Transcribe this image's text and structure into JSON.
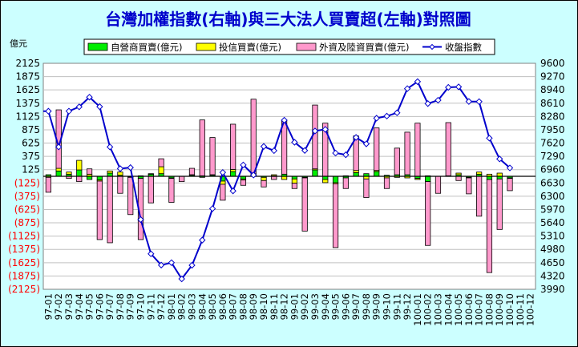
{
  "chart_data": {
    "type": "bar",
    "title": "台灣加權指數(右軸)與三大法人買賣超(左軸)對照圖",
    "y_unit_label": "億元",
    "ylim": [
      -2125,
      2125
    ],
    "y2lim": [
      3990,
      9600
    ],
    "y_tick_labels": [
      "2125",
      "1875",
      "1625",
      "1375",
      "1125",
      "875",
      "625",
      "375",
      "125",
      "(125)",
      "(375)",
      "(625)",
      "(875)",
      "(1125)",
      "(1375)",
      "(1625)",
      "(1875)",
      "(2125)"
    ],
    "y2_ticks": [
      9600,
      9270,
      8940,
      8610,
      8280,
      7950,
      7620,
      7290,
      6960,
      6630,
      6300,
      5970,
      5640,
      5310,
      4980,
      4650,
      4320,
      3990
    ],
    "categories": [
      "97-01",
      "97-02",
      "97-03",
      "97-04",
      "97-05",
      "97-06",
      "97-07",
      "97-08",
      "97-09",
      "97-10",
      "97-11",
      "97-12",
      "98-01",
      "98-02",
      "98-03",
      "98-04",
      "98-05",
      "98-06",
      "98-07",
      "98-08",
      "98-09",
      "98-10",
      "98-11",
      "98-12",
      "99-01",
      "99-02",
      "99-03",
      "99-04",
      "99-05",
      "99-06",
      "99-07",
      "99-08",
      "99-09",
      "99-10",
      "99-11",
      "99-12",
      "100-01",
      "100-02",
      "100-03",
      "100-04",
      "100-05",
      "100-06",
      "100-07",
      "100-08",
      "100-09",
      "100-10",
      "100-11",
      "100-12"
    ],
    "series": [
      {
        "name": "自營商買賣(億元)",
        "kind": "bar",
        "color": "#00ee00",
        "values": [
          30,
          100,
          40,
          120,
          -60,
          -70,
          60,
          20,
          -10,
          -40,
          40,
          50,
          -30,
          0,
          20,
          -20,
          20,
          -90,
          90,
          -50,
          30,
          -20,
          10,
          40,
          -50,
          -20,
          120,
          -60,
          -120,
          -30,
          70,
          50,
          90,
          20,
          30,
          30,
          -40,
          -100,
          0,
          0,
          30,
          -20,
          40,
          -60,
          -50,
          -30,
          0,
          0
        ]
      },
      {
        "name": "投信買賣(億元)",
        "kind": "bar",
        "color": "#ffff00",
        "values": [
          -20,
          50,
          40,
          180,
          40,
          -20,
          40,
          60,
          -10,
          10,
          10,
          130,
          -10,
          0,
          10,
          10,
          10,
          -60,
          40,
          -20,
          20,
          -60,
          20,
          -60,
          -80,
          -10,
          20,
          -60,
          -20,
          10,
          40,
          -50,
          20,
          -30,
          -20,
          -30,
          -20,
          10,
          0,
          10,
          30,
          -10,
          40,
          40,
          60,
          -10,
          0,
          0
        ]
      },
      {
        "name": "外資及陸資買賣(億元)",
        "kind": "bar",
        "color": "#ff99cc",
        "values": [
          -280,
          1100,
          -40,
          -100,
          100,
          -1100,
          -1250,
          -320,
          -700,
          -1150,
          -500,
          150,
          -450,
          -100,
          120,
          1050,
          700,
          -300,
          850,
          -100,
          1400,
          -120,
          -60,
          1000,
          -100,
          -1000,
          1200,
          1000,
          -1200,
          -200,
          650,
          -350,
          800,
          -200,
          500,
          800,
          1000,
          -1200,
          -320,
          1000,
          -80,
          -300,
          -750,
          -1750,
          -950,
          -230,
          0,
          0
        ]
      },
      {
        "name": "收盤指數",
        "kind": "line",
        "axis": "right",
        "color": "#0000cc",
        "values": [
          8412,
          7524,
          8413,
          8519,
          8759,
          8523,
          7523,
          6986,
          7011,
          5720,
          4871,
          4591,
          4651,
          4248,
          4587,
          5211,
          5993,
          6891,
          6432,
          7077,
          6826,
          7536,
          7432,
          8188,
          7640,
          7436,
          7920,
          7960,
          7373,
          7330,
          7760,
          7600,
          8237,
          8290,
          8372,
          8972,
          9145,
          8600,
          8684,
          9003,
          9015,
          8652,
          8649,
          7742,
          7226,
          7003,
          null,
          null
        ]
      }
    ]
  }
}
